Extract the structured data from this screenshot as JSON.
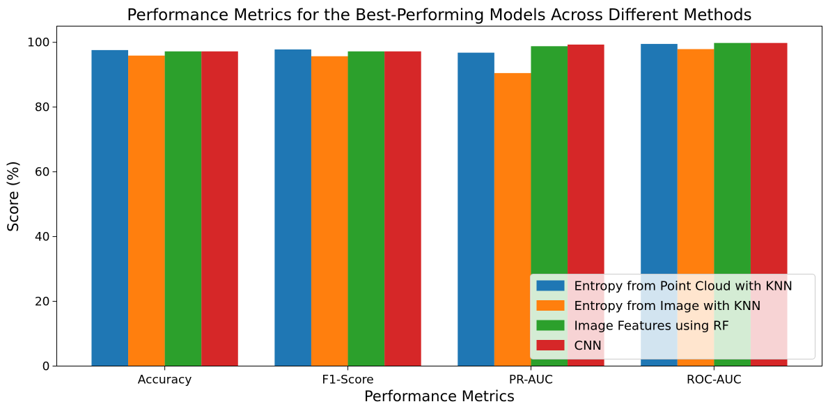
{
  "chart_data": {
    "type": "bar",
    "title": "Performance Metrics for the Best-Performing Models Across Different Methods",
    "xlabel": "Performance Metrics",
    "ylabel": "Score (%)",
    "categories": [
      "Accuracy",
      "F1-Score",
      "PR-AUC",
      "ROC-AUC"
    ],
    "ylim": [
      0,
      105
    ],
    "yticks": [
      "0",
      "20",
      "40",
      "60",
      "80",
      "100"
    ],
    "grid": false,
    "legend_position": "lower-right",
    "series": [
      {
        "name": "Entropy from Point Cloud with KNN",
        "color": "#1f77b4",
        "values": [
          97.6,
          97.8,
          96.8,
          99.5
        ]
      },
      {
        "name": "Entropy from Image with KNN",
        "color": "#ff7f0e",
        "values": [
          95.9,
          95.7,
          90.5,
          97.9
        ]
      },
      {
        "name": "Image Features using RF",
        "color": "#2ca02c",
        "values": [
          97.2,
          97.2,
          98.8,
          99.8
        ]
      },
      {
        "name": "CNN",
        "color": "#d62728",
        "values": [
          97.2,
          97.2,
          99.3,
          99.8
        ]
      }
    ]
  }
}
